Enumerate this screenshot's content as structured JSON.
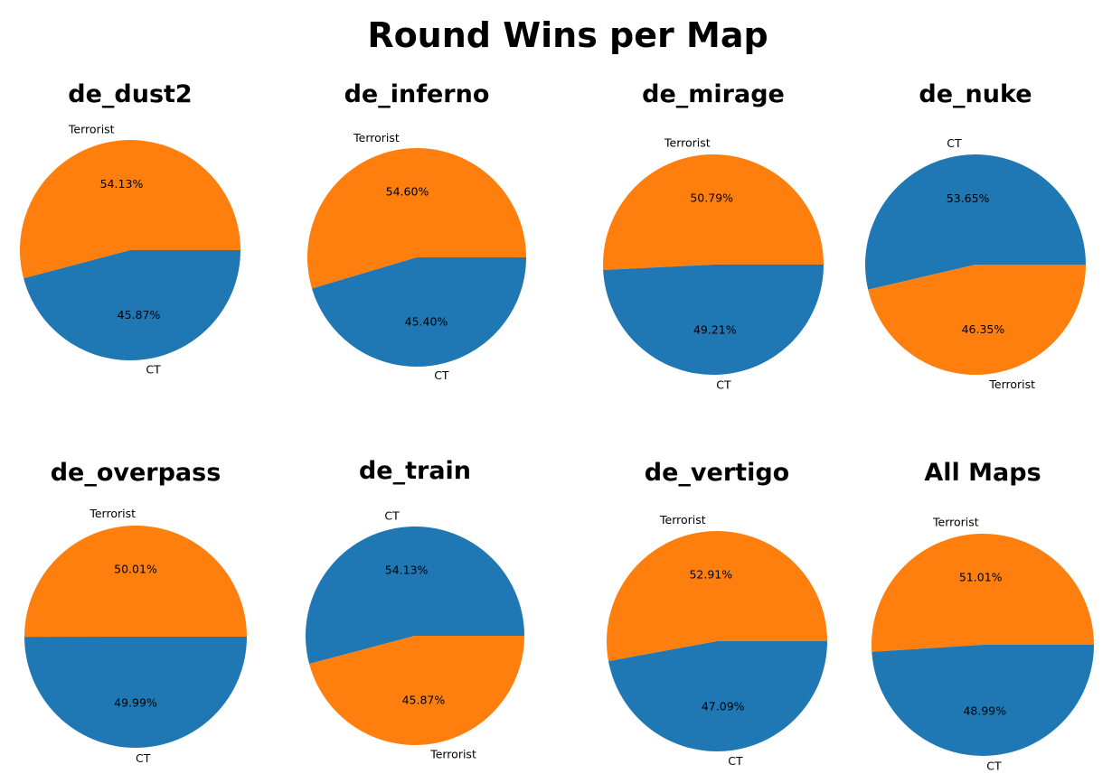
{
  "figure_title": "Round Wins per Map",
  "colors": {
    "Terrorist": "#ff7f0e",
    "CT": "#1f77b4"
  },
  "chart_data": [
    {
      "type": "pie",
      "title": "de_dust2",
      "slices": [
        {
          "label": "Terrorist",
          "value": 54.13,
          "text": "54.13%"
        },
        {
          "label": "CT",
          "value": 45.87,
          "text": "45.87%"
        }
      ]
    },
    {
      "type": "pie",
      "title": "de_inferno",
      "slices": [
        {
          "label": "Terrorist",
          "value": 54.6,
          "text": "54.60%"
        },
        {
          "label": "CT",
          "value": 45.4,
          "text": "45.40%"
        }
      ]
    },
    {
      "type": "pie",
      "title": "de_mirage",
      "slices": [
        {
          "label": "Terrorist",
          "value": 50.79,
          "text": "50.79%"
        },
        {
          "label": "CT",
          "value": 49.21,
          "text": "49.21%"
        }
      ]
    },
    {
      "type": "pie",
      "title": "de_nuke",
      "slices": [
        {
          "label": "CT",
          "value": 53.65,
          "text": "53.65%"
        },
        {
          "label": "Terrorist",
          "value": 46.35,
          "text": "46.35%"
        }
      ]
    },
    {
      "type": "pie",
      "title": "de_overpass",
      "slices": [
        {
          "label": "Terrorist",
          "value": 50.01,
          "text": "50.01%"
        },
        {
          "label": "CT",
          "value": 49.99,
          "text": "49.99%"
        }
      ]
    },
    {
      "type": "pie",
      "title": "de_train",
      "slices": [
        {
          "label": "CT",
          "value": 54.13,
          "text": "54.13%"
        },
        {
          "label": "Terrorist",
          "value": 45.87,
          "text": "45.87%"
        }
      ]
    },
    {
      "type": "pie",
      "title": "de_vertigo",
      "slices": [
        {
          "label": "Terrorist",
          "value": 52.91,
          "text": "52.91%"
        },
        {
          "label": "CT",
          "value": 47.09,
          "text": "47.09%"
        }
      ]
    },
    {
      "type": "pie",
      "title": "All Maps",
      "slices": [
        {
          "label": "Terrorist",
          "value": 51.01,
          "text": "51.01%"
        },
        {
          "label": "CT",
          "value": 48.99,
          "text": "48.99%"
        }
      ]
    }
  ]
}
